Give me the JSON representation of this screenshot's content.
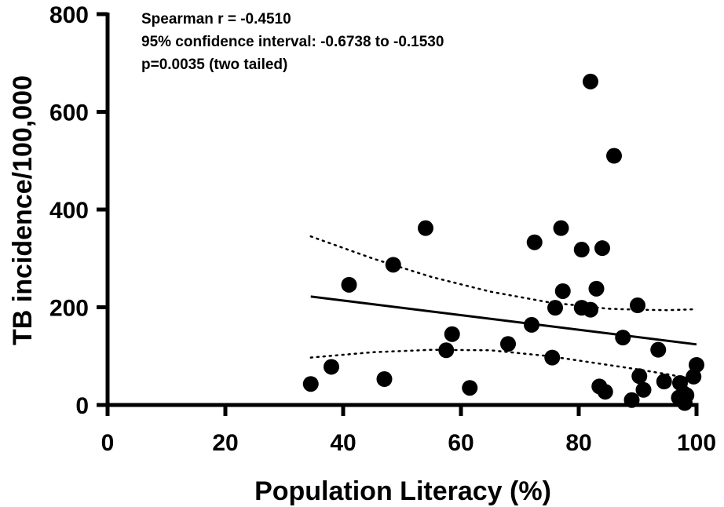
{
  "chart_data": {
    "type": "scatter",
    "title": "",
    "xlabel": "Population Literacy (%)",
    "ylabel": "TB incidence/100,000",
    "xlim": [
      0,
      100
    ],
    "ylim": [
      0,
      800
    ],
    "xticks": [
      "0",
      "20",
      "40",
      "60",
      "80",
      "100"
    ],
    "yticks": [
      "0",
      "200",
      "400",
      "600",
      "800"
    ],
    "grid": false,
    "annotations": [
      "Spearman r = -0.4510",
      "95% confidence interval: -0.6738 to -0.1530",
      "p=0.0035 (two tailed)"
    ],
    "points": [
      {
        "x": 34.5,
        "y": 43
      },
      {
        "x": 38,
        "y": 78
      },
      {
        "x": 41,
        "y": 246
      },
      {
        "x": 47,
        "y": 53
      },
      {
        "x": 48.5,
        "y": 287
      },
      {
        "x": 54,
        "y": 362
      },
      {
        "x": 57.5,
        "y": 112
      },
      {
        "x": 58.5,
        "y": 145
      },
      {
        "x": 61.5,
        "y": 35
      },
      {
        "x": 68,
        "y": 125
      },
      {
        "x": 72,
        "y": 164
      },
      {
        "x": 72.5,
        "y": 333
      },
      {
        "x": 75.5,
        "y": 97
      },
      {
        "x": 76,
        "y": 199
      },
      {
        "x": 77,
        "y": 362
      },
      {
        "x": 77.3,
        "y": 233
      },
      {
        "x": 80.5,
        "y": 318
      },
      {
        "x": 80.5,
        "y": 199
      },
      {
        "x": 82,
        "y": 662
      },
      {
        "x": 82,
        "y": 195
      },
      {
        "x": 83,
        "y": 238
      },
      {
        "x": 83.5,
        "y": 38
      },
      {
        "x": 84,
        "y": 321
      },
      {
        "x": 84.5,
        "y": 27
      },
      {
        "x": 86,
        "y": 510
      },
      {
        "x": 87.5,
        "y": 138
      },
      {
        "x": 89,
        "y": 10
      },
      {
        "x": 90,
        "y": 204
      },
      {
        "x": 90.3,
        "y": 59
      },
      {
        "x": 91,
        "y": 31
      },
      {
        "x": 93.5,
        "y": 113
      },
      {
        "x": 94.5,
        "y": 48
      },
      {
        "x": 97,
        "y": 15
      },
      {
        "x": 97.2,
        "y": 45
      },
      {
        "x": 97.8,
        "y": 24
      },
      {
        "x": 98,
        "y": 4
      },
      {
        "x": 98.3,
        "y": 20
      },
      {
        "x": 99.5,
        "y": 58
      },
      {
        "x": 100,
        "y": 82
      }
    ],
    "fit_line": {
      "x": [
        34.5,
        100
      ],
      "y": [
        222,
        124
      ]
    },
    "ci_upper": {
      "x": [
        34.5,
        45,
        55,
        65,
        75,
        85,
        90,
        95,
        100
      ],
      "y": [
        345,
        300,
        262,
        232,
        210,
        197,
        195,
        194,
        196
      ]
    },
    "ci_lower": {
      "x": [
        34.5,
        45,
        55,
        65,
        75,
        85,
        90,
        95,
        100
      ],
      "y": [
        97,
        108,
        113,
        112,
        100,
        82,
        73,
        63,
        52
      ]
    }
  }
}
